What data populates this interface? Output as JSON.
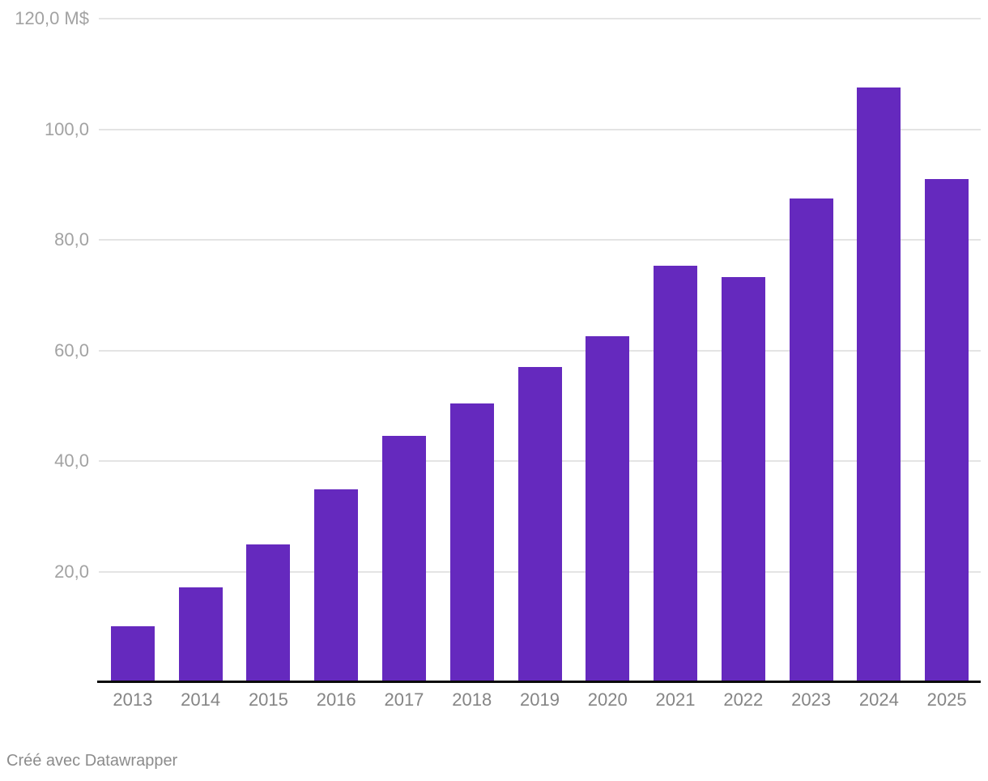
{
  "chart_data": {
    "type": "bar",
    "categories": [
      "2013",
      "2014",
      "2015",
      "2016",
      "2017",
      "2018",
      "2019",
      "2020",
      "2021",
      "2022",
      "2023",
      "2024",
      "2025"
    ],
    "values": [
      10.1,
      17.2,
      24.9,
      34.8,
      44.5,
      50.4,
      57.0,
      62.6,
      75.3,
      73.2,
      87.5,
      107.6,
      91.0
    ],
    "series_unit": "M$",
    "xlabel": "",
    "ylabel": "M$",
    "ylim": [
      0,
      120
    ],
    "grid": true,
    "legend": "none",
    "yticks": [
      {
        "value": 20,
        "label": "20,0"
      },
      {
        "value": 40,
        "label": "40,0"
      },
      {
        "value": 60,
        "label": "60,0"
      },
      {
        "value": 80,
        "label": "80,0"
      },
      {
        "value": 100,
        "label": "100,0"
      },
      {
        "value": 120,
        "label": "120,0 M$"
      }
    ]
  },
  "colors": {
    "bar": "#6529be",
    "gridline": "#e4e4e4",
    "baseline": "#0b0b0b",
    "ytick_text": "#a2a2a2",
    "xtick_text": "#858585",
    "footer_text": "#8c8c8c",
    "background": "#ffffff"
  },
  "footer": {
    "prefix": "Créé avec ",
    "link_label": "Datawrapper"
  }
}
